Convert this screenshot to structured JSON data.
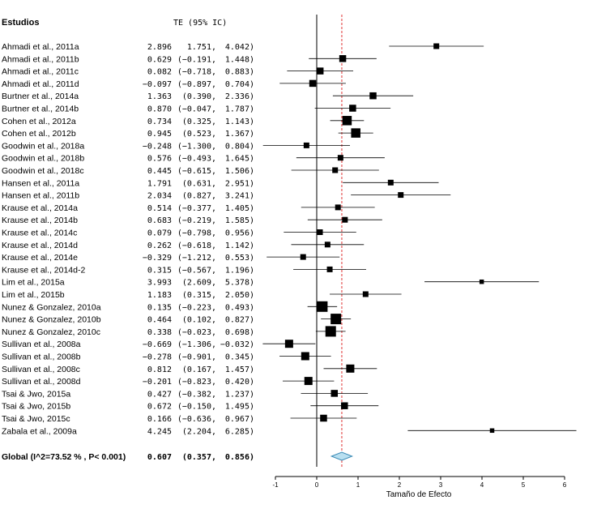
{
  "chart_data": {
    "type": "forest",
    "header_label": "Estudios",
    "header_effect": "TE (95% IC)",
    "xlabel": "Tamaño de Efecto",
    "xlim": [
      -1,
      6
    ],
    "xticks": [
      -1,
      0,
      1,
      2,
      3,
      4,
      5,
      6
    ],
    "xtick_labels": [
      "-1",
      "0",
      "1",
      "2",
      "3",
      "4",
      "5",
      "6"
    ],
    "null_line": 0,
    "summary_line": 0.607,
    "colors": {
      "marker": "#000000",
      "ci": "#000000",
      "summary_line": "#e03030",
      "diamond_fill": "#b8dff0",
      "diamond_stroke": "#3a8ab5"
    },
    "studies": [
      {
        "name": "Ahmadi et al., 2011a",
        "te": "2.896",
        "lo": "1.751,",
        "hi": "4.042)",
        "v": 2.896,
        "l": 1.751,
        "h": 4.042,
        "w": 2
      },
      {
        "name": "Ahmadi et al., 2011b",
        "te": "0.629",
        "lo": "(−0.191,",
        "hi": "1.448)",
        "v": 0.629,
        "l": -0.191,
        "h": 1.448,
        "w": 3
      },
      {
        "name": "Ahmadi et al., 2011c",
        "te": "0.082",
        "lo": "(−0.718,",
        "hi": "0.883)",
        "v": 0.082,
        "l": -0.718,
        "h": 0.883,
        "w": 3
      },
      {
        "name": "Ahmadi et al., 2011d",
        "te": "−0.097",
        "lo": "(−0.897,",
        "hi": "0.704)",
        "v": -0.097,
        "l": -0.897,
        "h": 0.704,
        "w": 3
      },
      {
        "name": "Burtner et al., 2014a",
        "te": "1.363",
        "lo": "(0.390,",
        "hi": "2.336)",
        "v": 1.363,
        "l": 0.39,
        "h": 2.336,
        "w": 3
      },
      {
        "name": "Burtner et al., 2014b",
        "te": "0.870",
        "lo": "(−0.047,",
        "hi": "1.787)",
        "v": 0.87,
        "l": -0.047,
        "h": 1.787,
        "w": 3
      },
      {
        "name": "Cohen et al., 2012a",
        "te": "0.734",
        "lo": "(0.325,",
        "hi": "1.143)",
        "v": 0.734,
        "l": 0.325,
        "h": 1.143,
        "w": 5
      },
      {
        "name": "Cohen et al., 2012b",
        "te": "0.945",
        "lo": "(0.523,",
        "hi": "1.367)",
        "v": 0.945,
        "l": 0.523,
        "h": 1.367,
        "w": 5
      },
      {
        "name": "Goodwin et al., 2018a",
        "te": "−0.248",
        "lo": "(−1.300,",
        "hi": "0.804)",
        "v": -0.248,
        "l": -1.3,
        "h": 0.804,
        "w": 2
      },
      {
        "name": "Goodwin et al., 2018b",
        "te": "0.576",
        "lo": "(−0.493,",
        "hi": "1.645)",
        "v": 0.576,
        "l": -0.493,
        "h": 1.645,
        "w": 2
      },
      {
        "name": "Goodwin et al., 2018c",
        "te": "0.445",
        "lo": "(−0.615,",
        "hi": "1.506)",
        "v": 0.445,
        "l": -0.615,
        "h": 1.506,
        "w": 2
      },
      {
        "name": "Hansen et al., 2011a",
        "te": "1.791",
        "lo": "(0.631,",
        "hi": "2.951)",
        "v": 1.791,
        "l": 0.631,
        "h": 2.951,
        "w": 2
      },
      {
        "name": "Hansen et al., 2011b",
        "te": "2.034",
        "lo": "(0.827,",
        "hi": "3.241)",
        "v": 2.034,
        "l": 0.827,
        "h": 3.241,
        "w": 2
      },
      {
        "name": "Krause et al., 2014a",
        "te": "0.514",
        "lo": "(−0.377,",
        "hi": "1.405)",
        "v": 0.514,
        "l": -0.377,
        "h": 1.405,
        "w": 2
      },
      {
        "name": "Krause et al., 2014b",
        "te": "0.683",
        "lo": "(−0.219,",
        "hi": "1.585)",
        "v": 0.683,
        "l": -0.219,
        "h": 1.585,
        "w": 2
      },
      {
        "name": "Krause et al., 2014c",
        "te": "0.079",
        "lo": "(−0.798,",
        "hi": "0.956)",
        "v": 0.079,
        "l": -0.798,
        "h": 0.956,
        "w": 2
      },
      {
        "name": "Krause et al., 2014d",
        "te": "0.262",
        "lo": "(−0.618,",
        "hi": "1.142)",
        "v": 0.262,
        "l": -0.618,
        "h": 1.142,
        "w": 2
      },
      {
        "name": "Krause et al., 2014e",
        "te": "−0.329",
        "lo": "(−1.212,",
        "hi": "0.553)",
        "v": -0.329,
        "l": -1.212,
        "h": 0.553,
        "w": 2
      },
      {
        "name": "Krause et al., 2014d-2",
        "te": "0.315",
        "lo": "(−0.567,",
        "hi": "1.196)",
        "v": 0.315,
        "l": -0.567,
        "h": 1.196,
        "w": 2
      },
      {
        "name": "Lim et al., 2015a",
        "te": "3.993",
        "lo": "(2.609,",
        "hi": "5.378)",
        "v": 3.993,
        "l": 2.609,
        "h": 5.378,
        "w": 1
      },
      {
        "name": "Lim et al., 2015b",
        "te": "1.183",
        "lo": "(0.315,",
        "hi": "2.050)",
        "v": 1.183,
        "l": 0.315,
        "h": 2.05,
        "w": 2
      },
      {
        "name": "Nunez & Gonzalez, 2010a",
        "te": "0.135",
        "lo": "(−0.223,",
        "hi": "0.493)",
        "v": 0.135,
        "l": -0.223,
        "h": 0.493,
        "w": 6
      },
      {
        "name": "Nunez & Gonzalez, 2010b",
        "te": "0.464",
        "lo": "(0.102,",
        "hi": "0.827)",
        "v": 0.464,
        "l": 0.102,
        "h": 0.827,
        "w": 6
      },
      {
        "name": "Nunez & Gonzalez, 2010c",
        "te": "0.338",
        "lo": "(−0.023,",
        "hi": "0.698)",
        "v": 0.338,
        "l": -0.023,
        "h": 0.698,
        "w": 6
      },
      {
        "name": "Sullivan et al., 2008a",
        "te": "−0.669",
        "lo": "(−1.306,",
        "hi": "−0.032)",
        "v": -0.669,
        "l": -1.306,
        "h": -0.032,
        "w": 4
      },
      {
        "name": "Sullivan et al., 2008b",
        "te": "−0.278",
        "lo": "(−0.901,",
        "hi": "0.345)",
        "v": -0.278,
        "l": -0.901,
        "h": 0.345,
        "w": 4
      },
      {
        "name": "Sullivan et al., 2008c",
        "te": "0.812",
        "lo": "(0.167,",
        "hi": "1.457)",
        "v": 0.812,
        "l": 0.167,
        "h": 1.457,
        "w": 4
      },
      {
        "name": "Sullivan et al., 2008d",
        "te": "−0.201",
        "lo": "(−0.823,",
        "hi": "0.420)",
        "v": -0.201,
        "l": -0.823,
        "h": 0.42,
        "w": 4
      },
      {
        "name": "Tsai & Jwo, 2015a",
        "te": "0.427",
        "lo": "(−0.382,",
        "hi": "1.237)",
        "v": 0.427,
        "l": -0.382,
        "h": 1.237,
        "w": 3
      },
      {
        "name": "Tsai & Jwo, 2015b",
        "te": "0.672",
        "lo": "(−0.150,",
        "hi": "1.495)",
        "v": 0.672,
        "l": -0.15,
        "h": 1.495,
        "w": 3
      },
      {
        "name": "Tsai & Jwo, 2015c",
        "te": "0.166",
        "lo": "(−0.636,",
        "hi": "0.967)",
        "v": 0.166,
        "l": -0.636,
        "h": 0.967,
        "w": 3
      },
      {
        "name": "Zabala et al., 2009a",
        "te": "4.245",
        "lo": "(2.204,",
        "hi": "6.285)",
        "v": 4.245,
        "l": 2.204,
        "h": 6.285,
        "w": 1
      }
    ],
    "overall": {
      "name": "Global (I^2=73.52 % , P< 0.001)",
      "te": "0.607",
      "lo": "(0.357,",
      "hi": "0.856)",
      "v": 0.607,
      "l": 0.357,
      "h": 0.856
    }
  }
}
